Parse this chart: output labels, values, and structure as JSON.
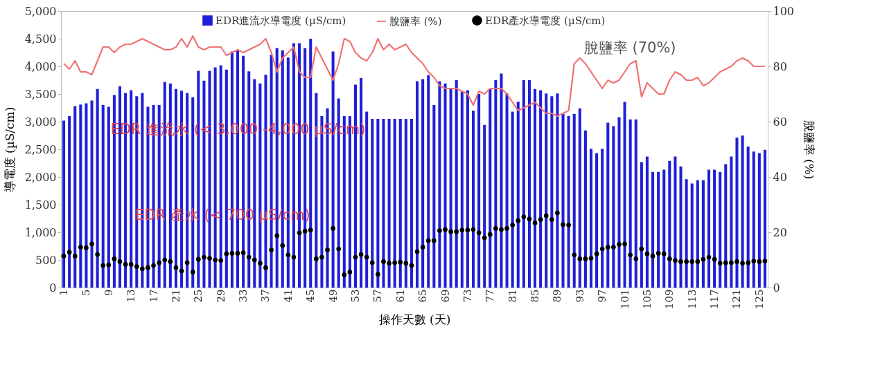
{
  "chart_data": {
    "type": "bar",
    "xlabel": "操作天數 (天)",
    "ylabel": "導電度 (µS/cm)",
    "y2label": "脫鹽率 (%)",
    "categories": [
      "1",
      null,
      null,
      null,
      "5",
      null,
      null,
      null,
      "9",
      null,
      null,
      null,
      "13",
      null,
      null,
      null,
      "17",
      null,
      null,
      null,
      "21",
      null,
      null,
      null,
      "25",
      null,
      null,
      null,
      "29",
      null,
      null,
      null,
      "33",
      null,
      null,
      null,
      "37",
      null,
      null,
      null,
      "41",
      null,
      null,
      null,
      "45",
      null,
      null,
      null,
      "49",
      null,
      null,
      null,
      "53",
      null,
      null,
      null,
      "57",
      null,
      null,
      null,
      "61",
      null,
      null,
      null,
      "65",
      null,
      null,
      null,
      "69",
      null,
      null,
      null,
      "73",
      null,
      null,
      null,
      "77",
      null,
      null,
      null,
      "81",
      null,
      null,
      null,
      "85",
      null,
      null,
      null,
      "89",
      null,
      null,
      null,
      "93",
      null,
      null,
      null,
      "97",
      null,
      null,
      null,
      "101",
      null,
      null,
      null,
      "105",
      null,
      null,
      null,
      "109",
      null,
      null,
      null,
      "113",
      null,
      null,
      null,
      "117",
      null,
      null,
      null,
      "121",
      null,
      null,
      null,
      "125",
      null
    ],
    "ylim": [
      0,
      5000
    ],
    "yticks": [
      0,
      500,
      {
        "value": 1000,
        "label": "1,000"
      },
      {
        "value": 1500,
        "label": "1,500"
      },
      {
        "value": 2000,
        "label": "2,000"
      },
      {
        "value": 2500,
        "label": "2,500"
      },
      {
        "value": 3000,
        "label": "3,000"
      },
      {
        "value": 3500,
        "label": "3,500"
      },
      {
        "value": 4000,
        "label": "4,000"
      },
      {
        "value": 4500,
        "label": "4,500"
      },
      {
        "value": 5000,
        "label": "5,000"
      }
    ],
    "y2lim": [
      0,
      100
    ],
    "y2ticks": [
      0,
      20,
      40,
      60,
      80,
      100
    ],
    "legend": "top",
    "series": [
      {
        "name": "EDR進流水導電度 (µS/cm)",
        "color": "#1f1fd8",
        "values": [
          3020,
          3100,
          3280,
          3310,
          3330,
          3380,
          3590,
          3300,
          3270,
          3480,
          3640,
          3520,
          3570,
          3460,
          3520,
          3270,
          3300,
          3300,
          3720,
          3690,
          3590,
          3560,
          3520,
          3440,
          3920,
          3740,
          3920,
          3980,
          4020,
          3940,
          4270,
          4290,
          4190,
          3910,
          3770,
          3690,
          3850,
          4210,
          4330,
          4290,
          4160,
          4420,
          4420,
          4330,
          4500,
          3520,
          3100,
          3240,
          4270,
          3420,
          3100,
          3100,
          3670,
          3790,
          3180,
          3050,
          3050,
          3050,
          3050,
          3050,
          3050,
          3050,
          3050,
          3730,
          3770,
          3840,
          3300,
          3730,
          3690,
          3610,
          3750,
          3540,
          3570,
          3200,
          3500,
          2940,
          3590,
          3750,
          3870,
          3510,
          3180,
          3360,
          3750,
          3750,
          3590,
          3570,
          3510,
          3460,
          3510,
          3140,
          3100,
          3140,
          3240,
          2840,
          2510,
          2430,
          2510,
          2980,
          2920,
          3080,
          3360,
          3040,
          3040,
          2270,
          2370,
          2090,
          2090,
          2130,
          2290,
          2370,
          2190,
          1960,
          1880,
          1940,
          1940,
          2130,
          2130,
          2090,
          2230,
          2370,
          2710,
          2750,
          2550,
          2460,
          2430,
          2490
        ]
      },
      {
        "name": "脫鹽率 (%)",
        "type": "line",
        "axis": "y2",
        "color": "#f07272",
        "line_style": "solid",
        "values": [
          81,
          79,
          82,
          78,
          78,
          77,
          82,
          87,
          87,
          85,
          87,
          88,
          88,
          89,
          90,
          89,
          88,
          87,
          86,
          86,
          87,
          90,
          87,
          91,
          87,
          86,
          87,
          87,
          87,
          84,
          85,
          86,
          85,
          86,
          87,
          88,
          90,
          85,
          78,
          83,
          85,
          87,
          78,
          76,
          76,
          87,
          83,
          79,
          75,
          81,
          90,
          89,
          85,
          83,
          82,
          85,
          90,
          86,
          88,
          86,
          87,
          88,
          85,
          83,
          81,
          78,
          76,
          73,
          72,
          72,
          72,
          71,
          70,
          66,
          71,
          70,
          72,
          72,
          72,
          70,
          67,
          64,
          65,
          66,
          67,
          65,
          63,
          63,
          62,
          63,
          64,
          81,
          83,
          81,
          78,
          75,
          72,
          75,
          74,
          75,
          78,
          81,
          82,
          69,
          74,
          72,
          70,
          70,
          75,
          78,
          77,
          75,
          75,
          76,
          73,
          74,
          76,
          78,
          79,
          80,
          82,
          83,
          82,
          80,
          80,
          80
        ]
      },
      {
        "name": "EDR產水導電度 (µS/cm)",
        "type": "scatter",
        "color": "#000000",
        "marker": "circle",
        "values": [
          570,
          640,
          570,
          730,
          720,
          790,
          600,
          400,
          410,
          520,
          470,
          420,
          420,
          380,
          340,
          360,
          400,
          450,
          500,
          470,
          360,
          300,
          450,
          280,
          510,
          550,
          530,
          500,
          490,
          610,
          620,
          620,
          630,
          550,
          500,
          440,
          360,
          680,
          940,
          760,
          590,
          550,
          990,
          1020,
          1040,
          520,
          550,
          680,
          1070,
          700,
          230,
          280,
          550,
          600,
          550,
          450,
          240,
          470,
          440,
          450,
          460,
          440,
          400,
          650,
          730,
          850,
          850,
          1030,
          1050,
          1010,
          1010,
          1040,
          1040,
          1050,
          990,
          900,
          960,
          1070,
          1050,
          1070,
          1130,
          1210,
          1280,
          1240,
          1170,
          1230,
          1300,
          1230,
          1350,
          1140,
          1130,
          590,
          520,
          520,
          530,
          610,
          700,
          730,
          730,
          780,
          790,
          590,
          520,
          700,
          610,
          570,
          620,
          610,
          520,
          490,
          470,
          470,
          470,
          470,
          510,
          550,
          510,
          440,
          450,
          450,
          470,
          440,
          450,
          480,
          470,
          480
        ]
      }
    ],
    "annotations": [
      "EDR 進流水 (< 3,000 -4,000 µS/cm)",
      "EDR 產水 (< 700 µS/cm)",
      "脫鹽率 (70%)"
    ]
  }
}
